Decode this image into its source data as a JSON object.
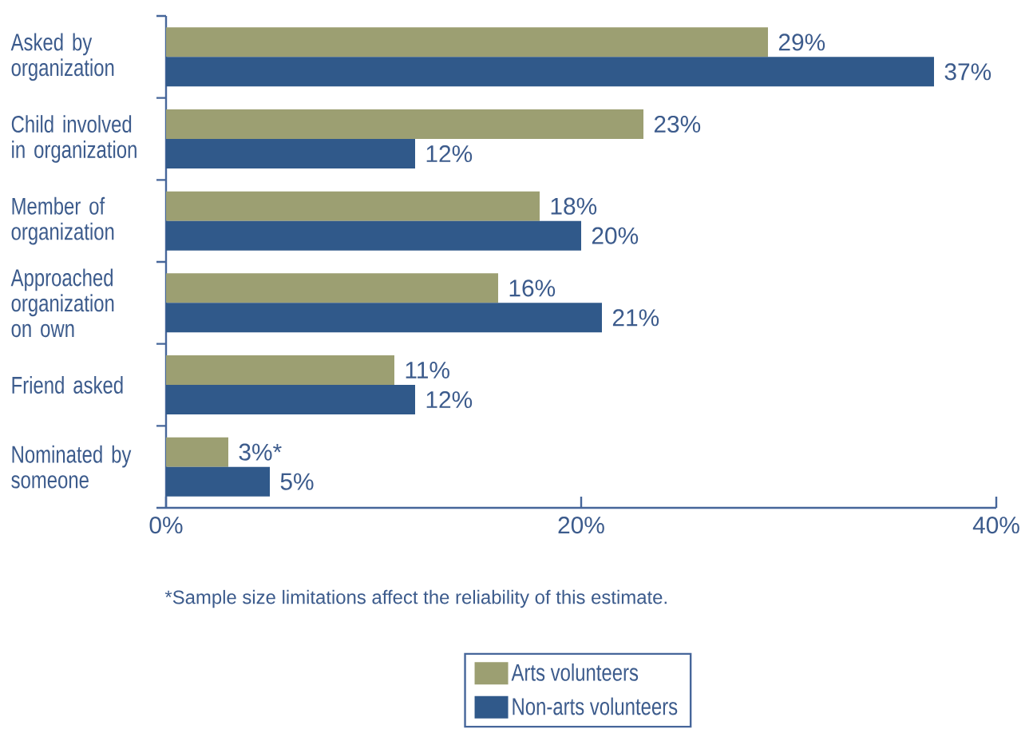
{
  "chart_data": {
    "type": "bar",
    "orientation": "horizontal",
    "categories": [
      "Asked by organization",
      "Child involved in organization",
      "Member of organization",
      "Approached organization on own",
      "Friend asked",
      "Nominated by someone"
    ],
    "series": [
      {
        "name": "Arts volunteers",
        "color": "#9c9f72",
        "values": [
          29,
          23,
          18,
          16,
          11,
          3
        ],
        "value_labels": [
          "29%",
          "23%",
          "18%",
          "16%",
          "11%",
          "3%*"
        ]
      },
      {
        "name": "Non-arts volunteers",
        "color": "#30598a",
        "values": [
          37,
          12,
          20,
          21,
          12,
          5
        ],
        "value_labels": [
          "37%",
          "12%",
          "20%",
          "21%",
          "12%",
          "5%"
        ]
      }
    ],
    "xlim": [
      0,
      40
    ],
    "xticks": [
      {
        "value": 0,
        "label": "0%"
      },
      {
        "value": 20,
        "label": "20%"
      },
      {
        "value": 40,
        "label": "40%"
      }
    ],
    "legend": "bottom",
    "annotations": [
      "*Sample size limitations affect the reliability of this estimate."
    ]
  }
}
